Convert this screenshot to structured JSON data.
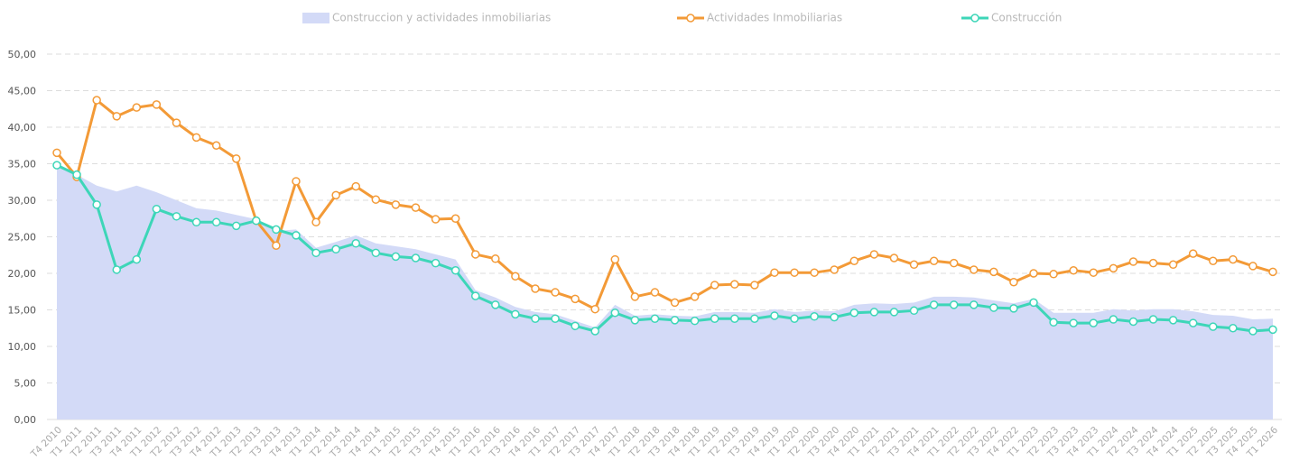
{
  "chart_data": {
    "type": "line",
    "categories": [
      "T4 2010",
      "T1 2011",
      "T2 2011",
      "T3 2011",
      "T4 2011",
      "T1 2012",
      "T2 2012",
      "T3 2012",
      "T4 2012",
      "T1 2013",
      "T2 2013",
      "T3 2013",
      "T4 2013",
      "T1 2014",
      "T2 2014",
      "T3 2014",
      "T4 2014",
      "T1 2015",
      "T2 2015",
      "T3 2015",
      "T4 2015",
      "T1 2016",
      "T2 2016",
      "T3 2016",
      "T4 2016",
      "T1 2017",
      "T2 2017",
      "T3 2017",
      "T4 2017",
      "T1 2018",
      "T2 2018",
      "T3 2018",
      "T4 2018",
      "T1 2019",
      "T2 2019",
      "T3 2019",
      "T4 2019",
      "T1 2020",
      "T2 2020",
      "T3 2020",
      "T4 2020",
      "T1 2021",
      "T2 2021",
      "T3 2021",
      "T4 2021",
      "T1 2022",
      "T2 2022",
      "T3 2022",
      "T4 2022",
      "T1 2023",
      "T2 2023",
      "T3 2023",
      "T4 2023",
      "T1 2024",
      "T2 2024",
      "T3 2024",
      "T4 2024",
      "T1 2025",
      "T2 2025",
      "T3 2025",
      "T4 2025",
      "T1 2026"
    ],
    "series": [
      {
        "name": "Construccion y actividades inmobiliarias",
        "kind": "area",
        "color": "#d3daf7",
        "values": [
          34.8,
          33.5,
          32.0,
          31.2,
          32.0,
          31.1,
          30.0,
          28.9,
          28.6,
          28.0,
          27.4,
          25.8,
          26.0,
          23.5,
          24.3,
          25.2,
          24.1,
          23.7,
          23.3,
          22.6,
          21.9,
          17.7,
          16.7,
          15.4,
          14.7,
          14.4,
          13.5,
          12.6,
          15.7,
          14.2,
          14.4,
          14.2,
          14.1,
          14.7,
          14.7,
          14.6,
          15.1,
          14.7,
          14.9,
          14.8,
          15.7,
          15.9,
          15.8,
          16.0,
          16.8,
          16.8,
          16.7,
          16.3,
          15.9,
          16.5,
          14.6,
          14.6,
          14.6,
          15.1,
          14.9,
          15.1,
          15.1,
          14.8,
          14.3,
          14.2,
          13.7,
          13.8
        ]
      },
      {
        "name": "Actividades Inmobiliarias",
        "kind": "line",
        "color": "#f39a37",
        "values": [
          36.5,
          33.2,
          43.7,
          41.5,
          42.7,
          43.1,
          40.6,
          38.6,
          37.5,
          35.7,
          27.2,
          23.8,
          32.6,
          27.0,
          30.7,
          31.9,
          30.1,
          29.4,
          29.0,
          27.4,
          27.5,
          22.6,
          22.0,
          19.6,
          17.9,
          17.4,
          16.5,
          15.1,
          21.9,
          16.8,
          17.4,
          16.0,
          16.8,
          18.4,
          18.5,
          18.4,
          20.1,
          20.1,
          20.1,
          20.5,
          21.7,
          22.6,
          22.1,
          21.2,
          21.7,
          21.4,
          20.5,
          20.2,
          18.8,
          20.0,
          19.9,
          20.4,
          20.1,
          20.7,
          21.6,
          21.4,
          21.2,
          22.7,
          21.7,
          21.9,
          21.0,
          20.2
        ]
      },
      {
        "name": "Construcción",
        "kind": "line",
        "color": "#3dd6b8",
        "values": [
          34.8,
          33.5,
          29.4,
          20.5,
          21.9,
          28.8,
          27.8,
          27.0,
          27.0,
          26.5,
          27.2,
          26.0,
          25.2,
          22.8,
          23.3,
          24.1,
          22.8,
          22.3,
          22.1,
          21.4,
          20.4,
          16.9,
          15.7,
          14.4,
          13.8,
          13.8,
          12.8,
          12.1,
          14.6,
          13.6,
          13.8,
          13.6,
          13.5,
          13.8,
          13.8,
          13.8,
          14.2,
          13.8,
          14.1,
          14.0,
          14.6,
          14.7,
          14.7,
          14.9,
          15.7,
          15.7,
          15.7,
          15.3,
          15.2,
          16.0,
          13.3,
          13.2,
          13.2,
          13.7,
          13.4,
          13.7,
          13.6,
          13.2,
          12.7,
          12.5,
          12.1,
          12.3
        ]
      }
    ],
    "ylim": [
      0,
      50
    ],
    "yticks": [
      {
        "value": 0,
        "label": "0,00"
      },
      {
        "value": 5,
        "label": "5,00"
      },
      {
        "value": 10,
        "label": "10,00"
      },
      {
        "value": 15,
        "label": "15,00"
      },
      {
        "value": 20,
        "label": "20,00"
      },
      {
        "value": 25,
        "label": "25,00"
      },
      {
        "value": 30,
        "label": "30,00"
      },
      {
        "value": 35,
        "label": "35,00"
      },
      {
        "value": 40,
        "label": "40,00"
      },
      {
        "value": 45,
        "label": "45,00"
      },
      {
        "value": 50,
        "label": "50,00"
      }
    ],
    "grid": true
  }
}
